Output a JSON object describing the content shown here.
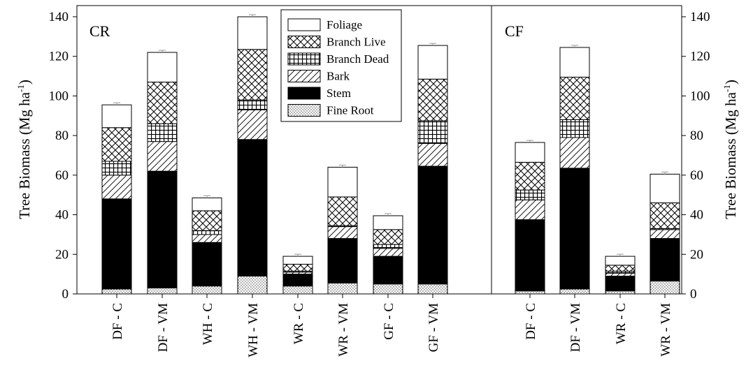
{
  "chart_data": {
    "type": "bar",
    "stacked": true,
    "ylabel_left": "Tree Biomass (Mg ha",
    "ylabel_right": "Tree Biomass (Mg ha",
    "ylabel_sup": "-1",
    "ylabel_close": ")",
    "ylim": [
      0,
      140
    ],
    "yticks": [
      "0",
      "20",
      "40",
      "60",
      "80",
      "100",
      "120",
      "140"
    ],
    "legend_position": "top-center",
    "legend": [
      {
        "name": "Foliage",
        "pattern": "foliage"
      },
      {
        "name": "Branch Live",
        "pattern": "branchlive"
      },
      {
        "name": "Branch Dead",
        "pattern": "branchdead"
      },
      {
        "name": "Bark",
        "pattern": "bark"
      },
      {
        "name": "Stem",
        "pattern": "stem"
      },
      {
        "name": "Fine Root",
        "pattern": "fineroot"
      }
    ],
    "panels": [
      {
        "label": "CR",
        "categories": [
          "DF - C",
          "DF - VM",
          "WH - C",
          "WH - VM",
          "WR - C",
          "WR - VM",
          "GF - C",
          "GF - VM"
        ],
        "series": [
          {
            "name": "Fine Root",
            "values": [
              2.5,
              3,
              4,
              9,
              4,
              5.5,
              5,
              5
            ]
          },
          {
            "name": "Stem",
            "values": [
              45.5,
              59,
              22,
              69,
              6,
              22.5,
              14,
              59.5
            ]
          },
          {
            "name": "Bark",
            "values": [
              12,
              15,
              4,
              15,
              1,
              6,
              4,
              11.5
            ]
          },
          {
            "name": "Branch Dead",
            "values": [
              7,
              9,
              2,
              5,
              0.5,
              0.5,
              2,
              11.5
            ]
          },
          {
            "name": "Branch Live",
            "values": [
              17,
              21,
              10,
              25.5,
              3.5,
              14.5,
              7.5,
              21
            ]
          },
          {
            "name": "Foliage",
            "values": [
              11.5,
              15,
              6.5,
              16.5,
              4,
              15,
              7,
              17
            ]
          }
        ]
      },
      {
        "label": "CF",
        "categories": [
          "DF - C",
          "DF - VM",
          "WR - C",
          "WR - VM"
        ],
        "series": [
          {
            "name": "Fine Root",
            "values": [
              1.5,
              2.5,
              1.5,
              6.5
            ]
          },
          {
            "name": "Stem",
            "values": [
              36,
              61,
              7.5,
              21.5
            ]
          },
          {
            "name": "Bark",
            "values": [
              10,
              15.5,
              1.5,
              4.5
            ]
          },
          {
            "name": "Branch Dead",
            "values": [
              5,
              9,
              1,
              0.5
            ]
          },
          {
            "name": "Branch Live",
            "values": [
              14,
              21.5,
              3,
              13
            ]
          },
          {
            "name": "Foliage",
            "values": [
              10,
              15,
              4.5,
              14.5
            ]
          }
        ]
      }
    ]
  }
}
